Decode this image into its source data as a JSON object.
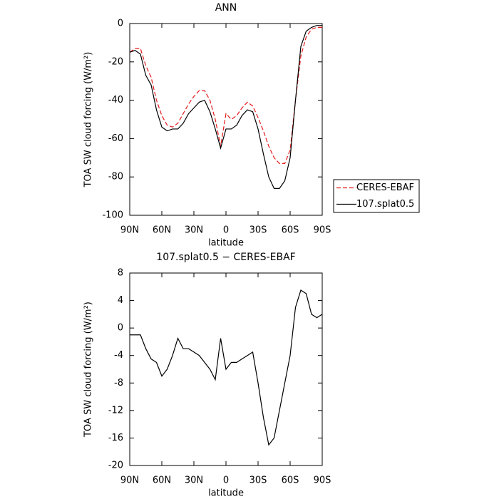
{
  "chart_data": [
    {
      "type": "line",
      "title": "ANN",
      "xlabel": "latitude",
      "ylabel": "TOA SW cloud forcing (W/m²)",
      "x": [
        90,
        85,
        80,
        75,
        70,
        65,
        60,
        55,
        50,
        45,
        40,
        35,
        30,
        25,
        20,
        15,
        10,
        5,
        0,
        -5,
        -10,
        -15,
        -20,
        -25,
        -30,
        -35,
        -40,
        -45,
        -50,
        -55,
        -60,
        -65,
        -70,
        -75,
        -80,
        -85,
        -90
      ],
      "series": [
        {
          "name": "CERES-EBAF",
          "color": "#e41a1c",
          "dash": true,
          "values": [
            -15,
            -13,
            -13,
            -22,
            -28,
            -40,
            -48,
            -53,
            -54,
            -52,
            -47,
            -42,
            -38,
            -35,
            -35,
            -40,
            -50,
            -64,
            -47,
            -50,
            -48,
            -44,
            -41,
            -43,
            -49,
            -56,
            -64,
            -70,
            -73,
            -73,
            -66,
            -40,
            -17,
            -7,
            -3,
            -2,
            -2
          ]
        },
        {
          "name": "107.splat0.5",
          "color": "#000000",
          "dash": false,
          "values": [
            -15,
            -14,
            -16,
            -27,
            -32,
            -45,
            -54,
            -56,
            -55,
            -55,
            -52,
            -47,
            -44,
            -41,
            -40,
            -46,
            -55,
            -65,
            -55,
            -55,
            -53,
            -48,
            -45,
            -46,
            -55,
            -68,
            -80,
            -86,
            -86,
            -82,
            -70,
            -40,
            -12,
            -4,
            -2,
            -1,
            -1
          ]
        }
      ],
      "xlim": [
        90,
        -90
      ],
      "xticks": [
        {
          "value": 90,
          "label": "90N"
        },
        {
          "value": 60,
          "label": "60N"
        },
        {
          "value": 30,
          "label": "30N"
        },
        0,
        {
          "value": -30,
          "label": "30S"
        },
        {
          "value": -60,
          "label": "60S"
        },
        {
          "value": -90,
          "label": "90S"
        }
      ],
      "ylim": [
        -100,
        0
      ],
      "yticks": [
        -100,
        -80,
        -60,
        -40,
        -20,
        0
      ],
      "legend": "right"
    },
    {
      "type": "line",
      "title": "107.splat0.5 − CERES-EBAF",
      "xlabel": "latitude",
      "ylabel": "TOA SW cloud forcing (W/m²)",
      "x": [
        90,
        85,
        80,
        75,
        70,
        65,
        60,
        55,
        50,
        45,
        40,
        35,
        30,
        25,
        20,
        15,
        10,
        5,
        0,
        -5,
        -10,
        -15,
        -20,
        -25,
        -30,
        -35,
        -40,
        -45,
        -50,
        -55,
        -60,
        -65,
        -70,
        -75,
        -80,
        -85,
        -90
      ],
      "series": [
        {
          "color": "#000000",
          "values": [
            -1,
            -1,
            -1,
            -3,
            -4.5,
            -5,
            -7,
            -6,
            -4,
            -1.5,
            -3,
            -3,
            -3.5,
            -4,
            -5,
            -6,
            -7.5,
            -1.5,
            -6,
            -5,
            -5,
            -4.5,
            -4,
            -3.5,
            -8,
            -13,
            -17,
            -16,
            -12,
            -8,
            -4,
            3,
            5.5,
            5,
            2,
            1.5,
            2
          ]
        }
      ],
      "xlim": [
        90,
        -90
      ],
      "xticks": [
        {
          "value": 90,
          "label": "90N"
        },
        {
          "value": 60,
          "label": "60N"
        },
        {
          "value": 30,
          "label": "30N"
        },
        0,
        {
          "value": -30,
          "label": "30S"
        },
        {
          "value": -60,
          "label": "60S"
        },
        {
          "value": -90,
          "label": "90S"
        }
      ],
      "ylim": [
        -20,
        8
      ],
      "yticks": [
        -20,
        -16,
        -12,
        -8,
        -4,
        0,
        4,
        8
      ]
    }
  ]
}
